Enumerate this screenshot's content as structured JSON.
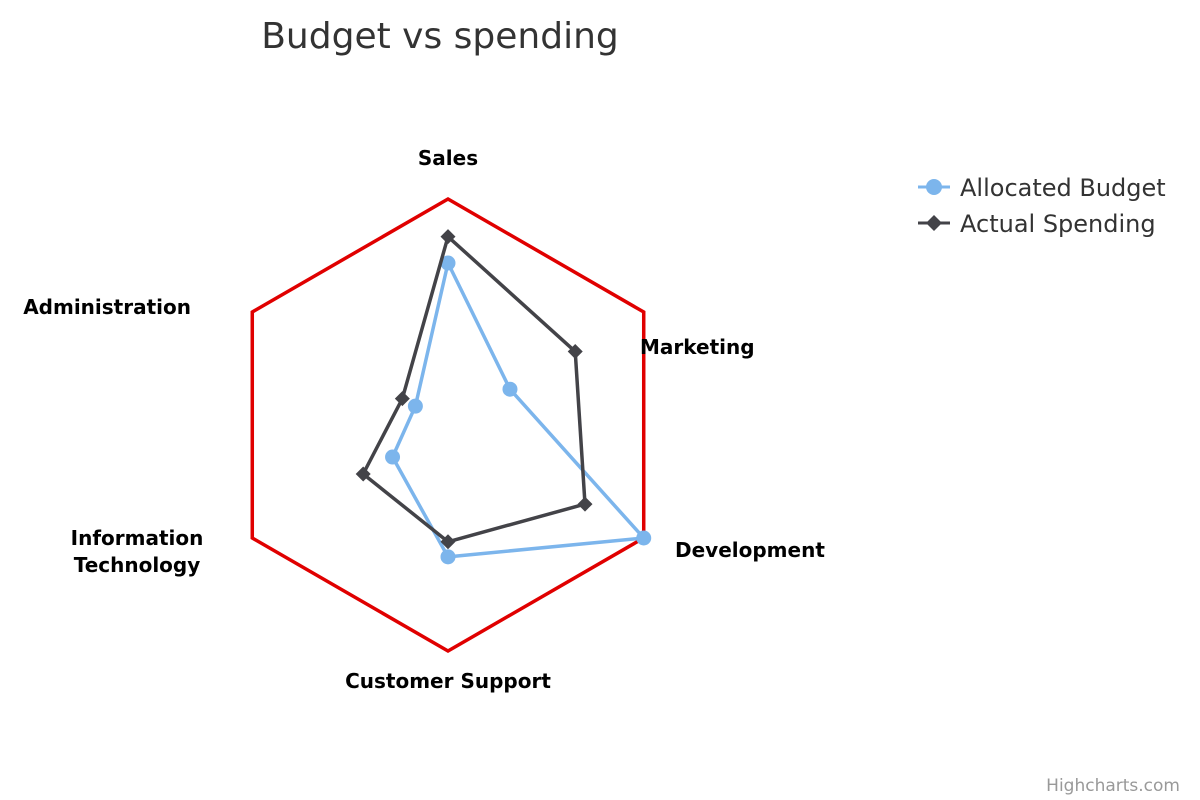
{
  "chart_data": {
    "type": "radar",
    "title": "Budget vs spending",
    "categories": [
      "Sales",
      "Marketing",
      "Development",
      "Customer Support",
      "Information Technology",
      "Administration"
    ],
    "yrange": [
      0,
      60000
    ],
    "series": [
      {
        "name": "Allocated Budget",
        "color": "#7cb5ec",
        "marker": "circle",
        "values": [
          43000,
          19000,
          60000,
          35000,
          17000,
          10000
        ]
      },
      {
        "name": "Actual Spending",
        "color": "#434348",
        "marker": "diamond",
        "values": [
          50000,
          39000,
          42000,
          31000,
          26000,
          14000
        ]
      }
    ],
    "grid": {
      "shape": "polygon",
      "color": "#e00000"
    },
    "legend": "top-right"
  },
  "credits": "Highcharts.com"
}
